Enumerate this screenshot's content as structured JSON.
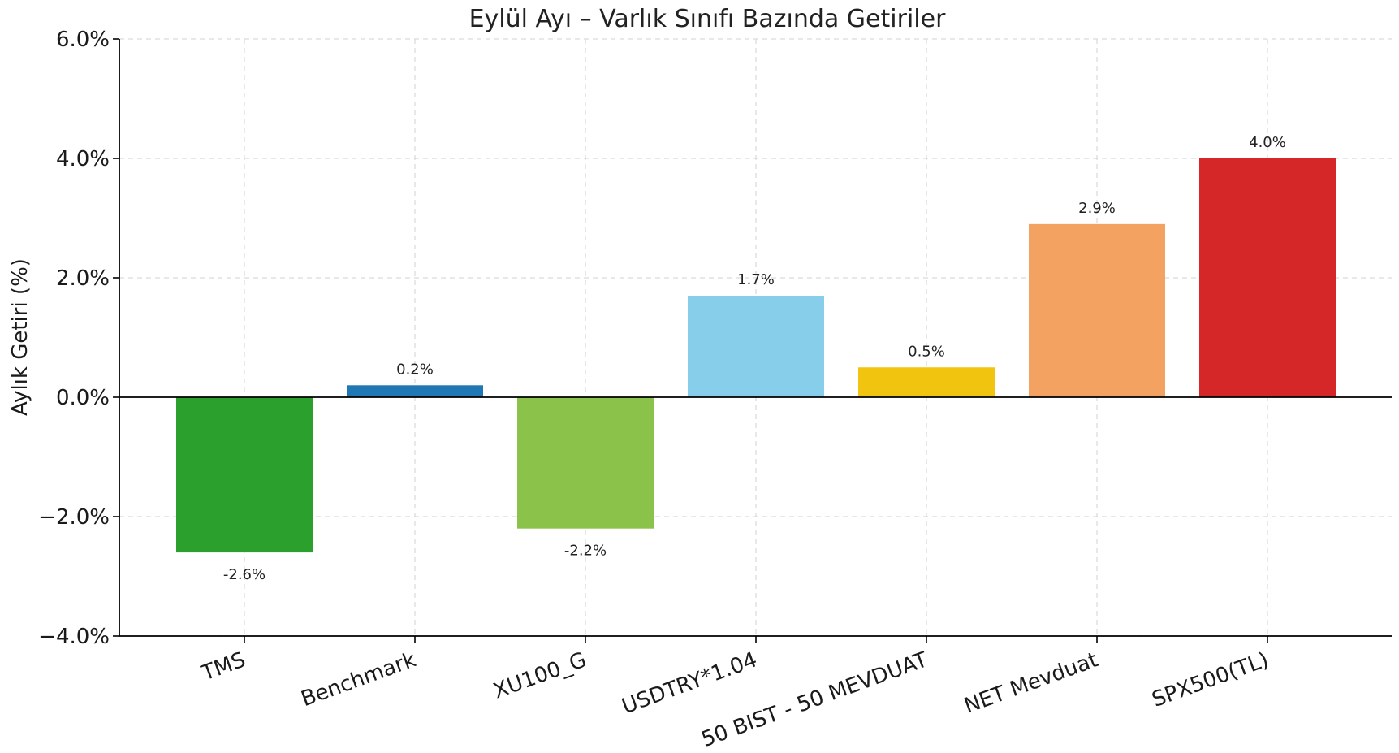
{
  "chart_data": {
    "type": "bar",
    "title": "Eylül Ayı – Varlık Sınıfı Bazında Getiriler",
    "xlabel": "",
    "ylabel": "Aylık Getiri (%)",
    "categories": [
      "TMS",
      "Benchmark",
      "XU100_G",
      "USDTRY*1.04",
      "50 BIST - 50 MEVDUAT",
      "NET Mevduat",
      "SPX500(TL)"
    ],
    "values": [
      -2.6,
      0.2,
      -2.2,
      1.7,
      0.5,
      2.9,
      4.0
    ],
    "value_labels": [
      "-2.6%",
      "0.2%",
      "-2.2%",
      "1.7%",
      "0.5%",
      "2.9%",
      "4.0%"
    ],
    "colors": [
      "#2ca02c",
      "#1f77b4",
      "#8bc34a",
      "#87ceeb",
      "#f1c40f",
      "#f4a261",
      "#d62728"
    ],
    "ylim": [
      -4.0,
      6.0
    ],
    "yticks": [
      -4.0,
      -2.0,
      0.0,
      2.0,
      4.0,
      6.0
    ],
    "ytick_labels": [
      "−4.0%",
      "−2.0%",
      "0.0%",
      "2.0%",
      "4.0%",
      "6.0%"
    ],
    "grid": true,
    "zero_line": true,
    "legend": "none"
  }
}
